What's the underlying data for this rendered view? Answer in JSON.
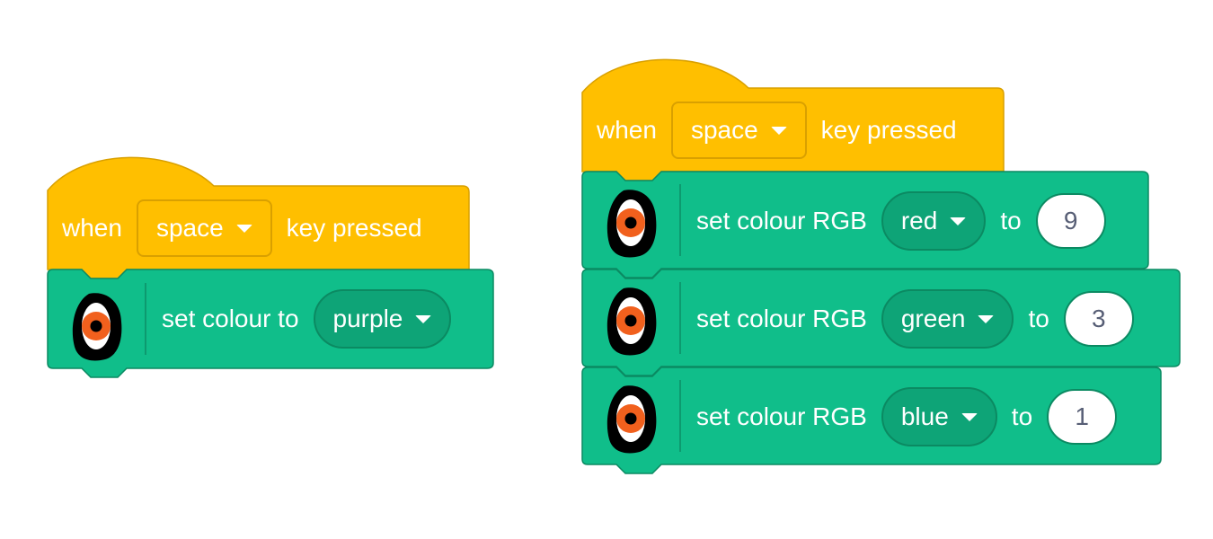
{
  "colors": {
    "event": "#ffbf00",
    "event_border": "#d9a000",
    "looks": "#10be8a",
    "looks_border": "#0b8a62",
    "looks_dropdown": "#0ea477",
    "eye_orange": "#f1601d",
    "number_text": "#575e75"
  },
  "left_script": {
    "hat": {
      "when": "when",
      "key": "space",
      "pressed": "key pressed"
    },
    "block": {
      "icon": "eye-icon",
      "label": "set colour to",
      "value": "purple"
    }
  },
  "right_script": {
    "hat": {
      "when": "when",
      "key": "space",
      "pressed": "key pressed"
    },
    "blocks": [
      {
        "icon": "eye-icon",
        "label": "set colour RGB",
        "channel": "red",
        "to": "to",
        "value": "9"
      },
      {
        "icon": "eye-icon",
        "label": "set colour RGB",
        "channel": "green",
        "to": "to",
        "value": "3"
      },
      {
        "icon": "eye-icon",
        "label": "set colour RGB",
        "channel": "blue",
        "to": "to",
        "value": "1"
      }
    ]
  }
}
